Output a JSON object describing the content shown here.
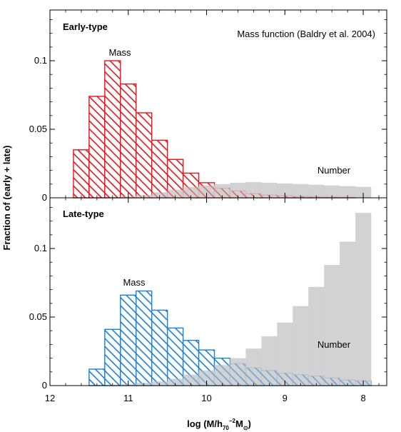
{
  "chart_data": {
    "type": "bar",
    "xlabel": "log (M/h",
    "xlabel_sub": "70",
    "xlabel_sup": "−2",
    "xlabel_end": "M",
    "xlabel_sub2": "⊙",
    "xlabel_close": ")",
    "ylabel": "Fraction of (early + late)",
    "annotation": "Mass function (Baldry et al. 2004)",
    "x_reversed": true,
    "xlim": [
      12.0,
      7.7
    ],
    "xticks": [
      "12",
      "11",
      "10",
      "9",
      "8"
    ],
    "bin_edges": [
      11.7,
      11.5,
      11.3,
      11.1,
      10.9,
      10.7,
      10.5,
      10.3,
      10.1,
      9.9,
      9.7,
      9.5,
      9.3,
      9.1,
      8.9,
      8.7,
      8.5,
      8.3,
      8.1,
      7.9
    ],
    "panels": [
      {
        "label": "Early-type",
        "label_color": "#e8141c",
        "ylim": [
          0,
          0.137
        ],
        "yticks": [
          "0",
          "0.05",
          "0.1"
        ],
        "series": [
          {
            "name": "Mass",
            "style": "hatched",
            "color": "#e8141c",
            "values": [
              0.035,
              0.074,
              0.1,
              0.083,
              0.062,
              0.042,
              0.028,
              0.018,
              0.011,
              0.007,
              0.005,
              0.003,
              0.002,
              0.0015,
              0.001,
              0.0007,
              0.0005,
              0.0003,
              0
            ]
          },
          {
            "name": "Number",
            "style": "filled",
            "color": "#cccccc",
            "values": [
              0,
              0,
              0,
              0.001,
              0.002,
              0.004,
              0.006,
              0.008,
              0.009,
              0.01,
              0.011,
              0.0115,
              0.011,
              0.0105,
              0.01,
              0.0095,
              0.009,
              0.0085,
              0.008
            ]
          }
        ]
      },
      {
        "label": "Late-type",
        "label_color": "#1b80d6",
        "ylim": [
          0,
          0.137
        ],
        "yticks": [
          "0",
          "0.05",
          "0.1"
        ],
        "series": [
          {
            "name": "Mass",
            "style": "hatched",
            "color": "#1b80d6",
            "values": [
              0.0,
              0.012,
              0.041,
              0.066,
              0.069,
              0.055,
              0.042,
              0.033,
              0.026,
              0.02,
              0.016,
              0.013,
              0.011,
              0.009,
              0.008,
              0.007,
              0.0055,
              0.004,
              0.0035
            ]
          },
          {
            "name": "Number",
            "style": "filled",
            "color": "#cccccc",
            "values": [
              0,
              0,
              0,
              0.001,
              0.002,
              0.003,
              0.005,
              0.008,
              0.011,
              0.015,
              0.02,
              0.027,
              0.036,
              0.046,
              0.058,
              0.072,
              0.088,
              0.105,
              0.126
            ]
          }
        ]
      }
    ]
  }
}
